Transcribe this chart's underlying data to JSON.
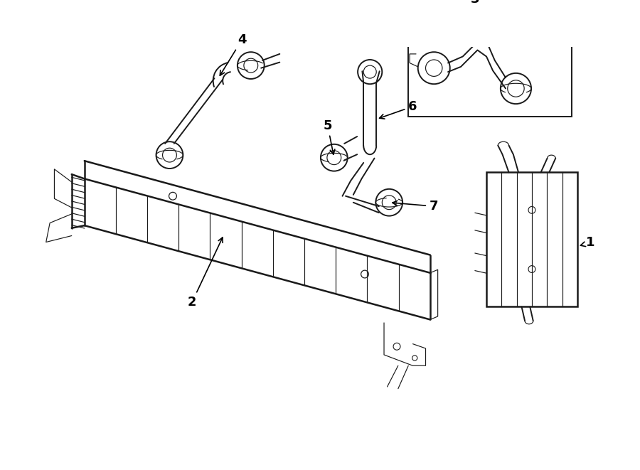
{
  "background_color": "#ffffff",
  "line_color": "#1a1a1a",
  "lw_main": 1.4,
  "lw_thin": 0.85,
  "lw_thick": 1.8,
  "label_fontsize": 13,
  "figsize": [
    9.0,
    6.61
  ],
  "dpi": 100,
  "xlim": [
    0,
    9.0
  ],
  "ylim": [
    0,
    6.61
  ]
}
